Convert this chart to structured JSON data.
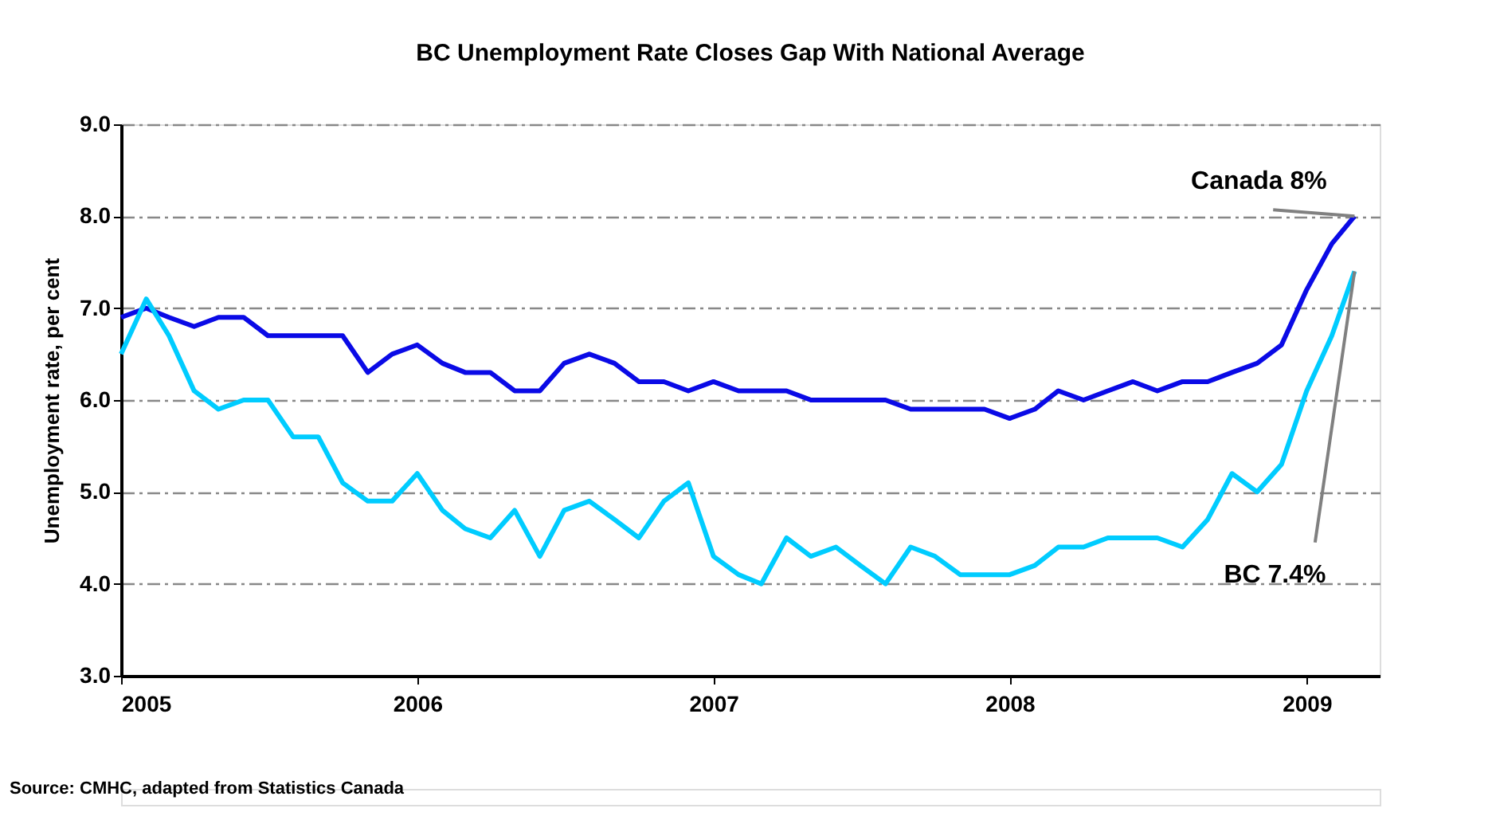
{
  "chart_data": {
    "type": "line",
    "title": "BC Unemployment Rate Closes Gap With National Average",
    "ylabel": "Unemployment rate, per cent",
    "x": [
      "2005-01",
      "2005-02",
      "2005-03",
      "2005-04",
      "2005-05",
      "2005-06",
      "2005-07",
      "2005-08",
      "2005-09",
      "2005-10",
      "2005-11",
      "2005-12",
      "2006-01",
      "2006-02",
      "2006-03",
      "2006-04",
      "2006-05",
      "2006-06",
      "2006-07",
      "2006-08",
      "2006-09",
      "2006-10",
      "2006-11",
      "2006-12",
      "2007-01",
      "2007-02",
      "2007-03",
      "2007-04",
      "2007-05",
      "2007-06",
      "2007-07",
      "2007-08",
      "2007-09",
      "2007-10",
      "2007-11",
      "2007-12",
      "2008-01",
      "2008-02",
      "2008-03",
      "2008-04",
      "2008-05",
      "2008-06",
      "2008-07",
      "2008-08",
      "2008-09",
      "2008-10",
      "2008-11",
      "2008-12",
      "2009-01",
      "2009-02",
      "2009-03"
    ],
    "series": [
      {
        "color": "#0a0ae6",
        "values": [
          6.9,
          7.0,
          6.9,
          6.8,
          6.9,
          6.9,
          6.7,
          6.7,
          6.7,
          6.7,
          6.3,
          6.5,
          6.6,
          6.4,
          6.3,
          6.3,
          6.1,
          6.1,
          6.4,
          6.5,
          6.4,
          6.2,
          6.2,
          6.1,
          6.2,
          6.1,
          6.1,
          6.1,
          6.0,
          6.0,
          6.0,
          6.0,
          5.9,
          5.9,
          5.9,
          5.9,
          5.8,
          5.9,
          6.1,
          6.0,
          6.1,
          6.2,
          6.1,
          6.2,
          6.2,
          6.3,
          6.4,
          6.6,
          7.2,
          7.7,
          8.0
        ]
      },
      {
        "color": "#00ccff",
        "values": [
          6.5,
          7.1,
          6.7,
          6.1,
          5.9,
          6.0,
          6.0,
          5.6,
          5.6,
          5.1,
          4.9,
          4.9,
          5.2,
          4.8,
          4.6,
          4.5,
          4.8,
          4.3,
          4.8,
          4.9,
          4.7,
          4.5,
          4.9,
          5.1,
          4.3,
          4.1,
          4.0,
          4.5,
          4.3,
          4.4,
          4.2,
          4.0,
          4.4,
          4.3,
          4.1,
          4.1,
          4.1,
          4.2,
          4.4,
          4.4,
          4.5,
          4.5,
          4.5,
          4.4,
          4.7,
          5.2,
          5.0,
          5.3,
          6.1,
          6.7,
          7.4
        ]
      }
    ],
    "xlim": [
      "2005-01",
      "2009-04"
    ],
    "xticks": [
      {
        "value": "2005-01",
        "label": "2005"
      },
      {
        "value": "2006-01",
        "label": "2006"
      },
      {
        "value": "2007-01",
        "label": "2007"
      },
      {
        "value": "2008-01",
        "label": "2008"
      },
      {
        "value": "2009-01",
        "label": "2009"
      }
    ],
    "ylim": [
      3.0,
      9.0
    ],
    "yticks": [
      {
        "value": 3,
        "label": "3.0"
      },
      {
        "value": 4,
        "label": "4.0"
      },
      {
        "value": 5,
        "label": "5.0"
      },
      {
        "value": 6,
        "label": "6.0"
      },
      {
        "value": 7,
        "label": "7.0"
      },
      {
        "value": 8,
        "label": "8.0"
      },
      {
        "value": 9,
        "label": "9.0"
      }
    ],
    "grid": "y",
    "marker": "none",
    "line_style": "solid",
    "annotations": [
      {
        "text": "Canada 8%",
        "x": "2009-03",
        "y": 8.0
      },
      {
        "text": "BC 7.4%",
        "x": "2009-03",
        "y": 7.4
      },
      "Source: CMHC, adapted from Statistics Canada"
    ]
  }
}
